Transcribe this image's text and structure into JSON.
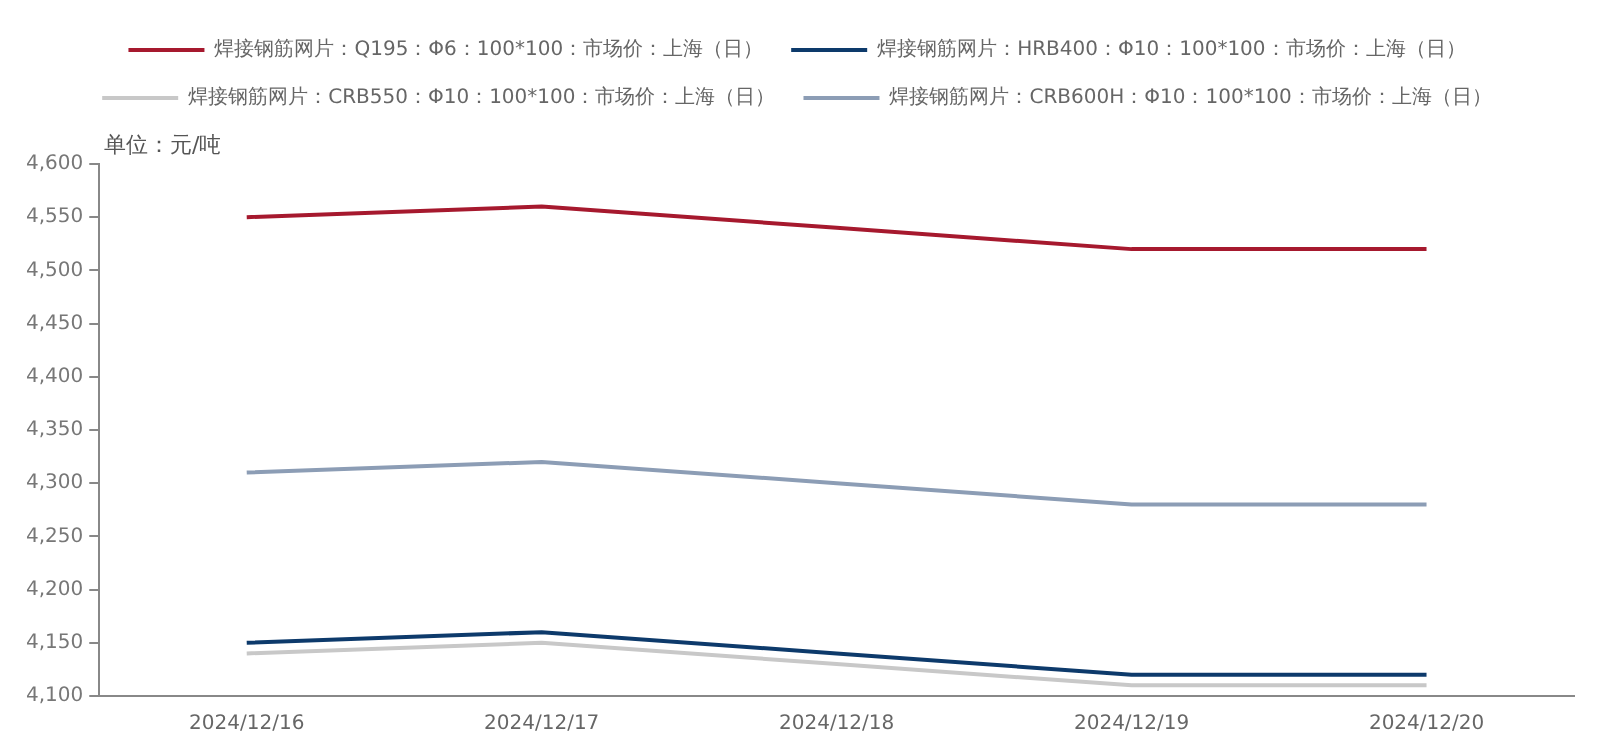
{
  "chart_data": {
    "type": "line",
    "ylabel": "单位：元/吨",
    "categories": [
      "2024/12/16",
      "2024/12/17",
      "2024/12/18",
      "2024/12/19",
      "2024/12/20"
    ],
    "series": [
      {
        "name": "焊接钢筋网片：Q195：Φ6：100*100：市场价：上海（日）",
        "color": "#a6192e",
        "values": [
          4550,
          4560,
          4540,
          4520,
          4520
        ]
      },
      {
        "name": "焊接钢筋网片：HRB400：Φ10：100*100：市场价：上海（日）",
        "color": "#0d3a6b",
        "values": [
          4150,
          4160,
          4140,
          4120,
          4120
        ]
      },
      {
        "name": "焊接钢筋网片：CRB550：Φ10：100*100：市场价：上海（日）",
        "color": "#c8c8c8",
        "values": [
          4140,
          4150,
          4130,
          4110,
          4110
        ]
      },
      {
        "name": "焊接钢筋网片：CRB600H：Φ10：100*100：市场价：上海（日）",
        "color": "#8c9db5",
        "values": [
          4310,
          4320,
          4300,
          4280,
          4280
        ]
      }
    ],
    "ylim": [
      4100,
      4600
    ],
    "yticks": [
      {
        "value": 4100,
        "label": "4,100"
      },
      {
        "value": 4150,
        "label": "4,150"
      },
      {
        "value": 4200,
        "label": "4,200"
      },
      {
        "value": 4250,
        "label": "4,250"
      },
      {
        "value": 4300,
        "label": "4,300"
      },
      {
        "value": 4350,
        "label": "4,350"
      },
      {
        "value": 4400,
        "label": "4,400"
      },
      {
        "value": 4450,
        "label": "4,450"
      },
      {
        "value": 4500,
        "label": "4,500"
      },
      {
        "value": 4550,
        "label": "4,550"
      },
      {
        "value": 4600,
        "label": "4,600"
      }
    ],
    "grid": false,
    "legend": "top",
    "marker": "none",
    "line_style": "solid"
  }
}
